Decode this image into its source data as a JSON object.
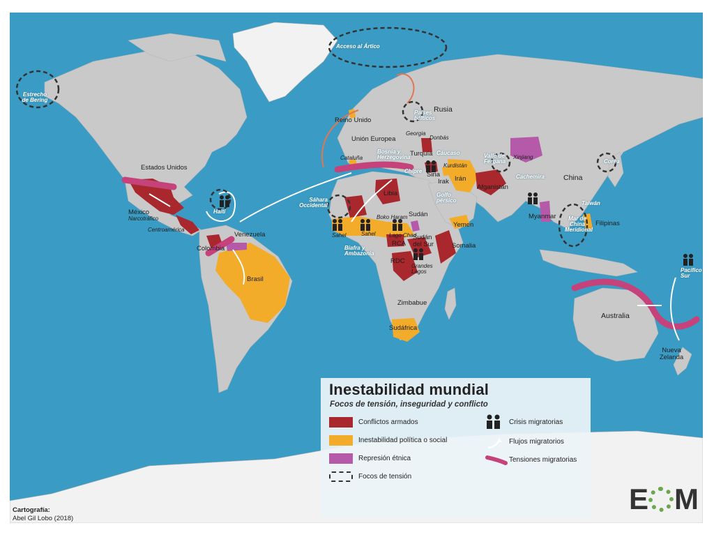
{
  "legend": {
    "title": "Inestabilidad mundial",
    "subtitle": "Focos de tensión, inseguridad y conflicto",
    "items": [
      {
        "label": "Conflictos armados",
        "color": "#a8282e",
        "icon": "red-swatch"
      },
      {
        "label": "Inestabilidad política o social",
        "color": "#f2ac2a",
        "icon": "orange-swatch"
      },
      {
        "label": "Represión étnica",
        "color": "#b55aa8",
        "icon": "purple-swatch"
      },
      {
        "label": "Focos de tensión",
        "color": "#333333",
        "icon": "dashed-outline"
      },
      {
        "label": "Crisis migratorias",
        "icon": "people-icon"
      },
      {
        "label": "Flujos migratorios",
        "icon": "white-arrow-icon"
      },
      {
        "label": "Tensiones migratorias",
        "color": "#c5437a",
        "icon": "pink-band-icon"
      }
    ]
  },
  "credits": {
    "label": "Cartografía:",
    "author": "Abel Gil Lobo (2018)"
  },
  "logo": {
    "left": "E",
    "right": "M"
  },
  "labels": {
    "acceso_artico": "Acceso al Ártico",
    "estrecho_bering": "Estrecho de Bering",
    "rusia": "Rusia",
    "paises_balticos": "Países bálticos",
    "reino_unido": "Reino Unido",
    "union_europea": "Unión Europea",
    "estados_unidos": "Estados Unidos",
    "mexico": "México",
    "narcotrafico": "Narcotráfico",
    "centroamerica": "Centroamérica",
    "haiti": "Haití",
    "venezuela": "Venezuela",
    "colombia": "Colombia",
    "brasil": "Brasil",
    "catalunya": "Cataluña",
    "bosnia": "Bosnia y Herzegovina",
    "turquia": "Turquía",
    "donbas": "Donbás",
    "georgia": "Georgia",
    "caucaso": "Cáucaso",
    "kurdistan": "Kurdistán",
    "chipre": "Chipre",
    "siria": "Siria",
    "irak": "Irak",
    "iran": "Irán",
    "afganistan": "Afganistán",
    "valle_fergana": "Valle de Fergana",
    "xinjiang": "Xinjiang",
    "cachemira": "Cachemira",
    "china": "China",
    "corea": "Corea",
    "taiwan": "Taiwán",
    "mar_china": "Mar de China Meridional",
    "filipinas": "Filipinas",
    "myanmar": "Myanmar",
    "libia": "Libia",
    "sahara": "Sáhara Occidental",
    "sudan": "Sudán",
    "golfo_persico": "Golfo pérsico",
    "yemen": "Yemen",
    "somalia": "Somalia",
    "sudan_sur": "Sudán del Sur",
    "sahel": "Sahel",
    "lago_chad": "Lago Chad",
    "boko_haram": "Boko Haram",
    "rca": "RCA",
    "biafra": "Biafra y Ambazonia",
    "rdc": "RDC",
    "grandes_lagos": "Grandes Lagos",
    "zimbabue": "Zimbabue",
    "sudafrica": "Sudáfrica",
    "australia": "Australia",
    "nueva_zelanda": "Nueva Zelanda",
    "pacifico_sur": "Pacífico Sur"
  }
}
